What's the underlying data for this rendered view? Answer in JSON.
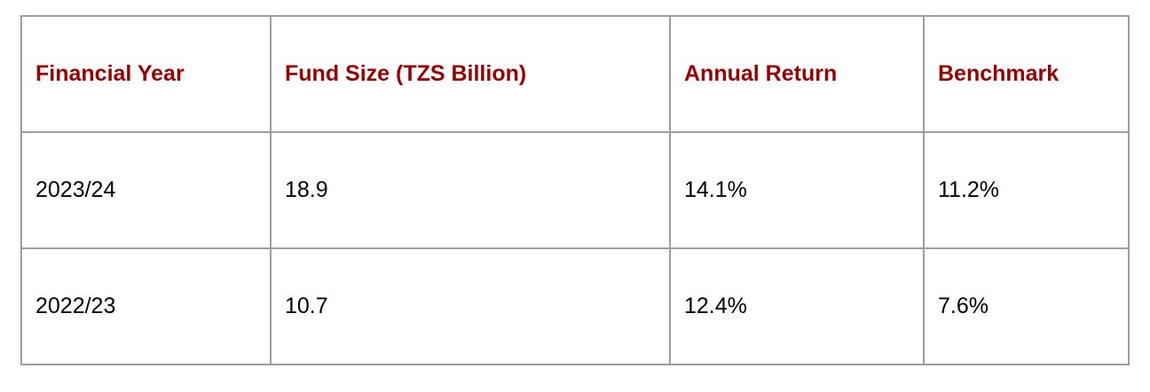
{
  "table": {
    "header": [
      "Financial Year",
      "Fund Size (TZS Billion)",
      "Annual Return",
      "Benchmark"
    ],
    "rows": [
      [
        "2023/24",
        "18.9",
        "14.1%",
        "11.2%"
      ],
      [
        "2022/23",
        "10.7",
        "12.4%",
        "7.6%"
      ]
    ]
  }
}
